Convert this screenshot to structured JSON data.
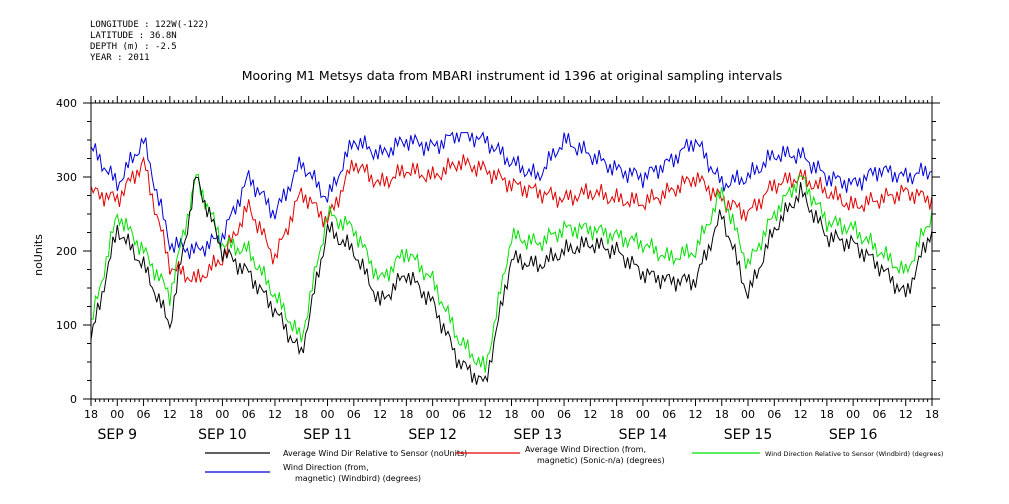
{
  "header": {
    "longitude": "LONGITUDE : 122W(-122)",
    "latitude": "LATITUDE : 36.8N",
    "depth": "DEPTH (m) : -2.5",
    "year": "YEAR : 2011"
  },
  "colors": {
    "black": "#000000",
    "red": "#e00000",
    "green": "#00e000",
    "blue": "#0000d8"
  },
  "chart_data": {
    "type": "line",
    "title": "Mooring M1 Metsys data from MBARI instrument id 1396 at original sampling intervals",
    "ylabel": "noUnits",
    "ylim": [
      0,
      400
    ],
    "yticks": [
      0,
      100,
      200,
      300,
      400
    ],
    "x_range_hours_label": "2011-09-08 18:00 to 2011-09-16 18:00",
    "x_tick_labels": [
      "18",
      "00",
      "06",
      "12",
      "18",
      "00",
      "06",
      "12",
      "18",
      "00",
      "06",
      "12",
      "18",
      "00",
      "06",
      "12",
      "18",
      "00",
      "06",
      "12",
      "18",
      "00",
      "06",
      "12",
      "18",
      "00",
      "06",
      "12",
      "18",
      "00",
      "06",
      "12",
      "18"
    ],
    "day_labels": [
      "SEP 9",
      "SEP 10",
      "SEP 11",
      "SEP 12",
      "SEP 13",
      "SEP 14",
      "SEP 15",
      "SEP 16"
    ],
    "grid": false,
    "legend_position": "bottom",
    "series": [
      {
        "name": "Average Wind Dir Relative to Sensor (noUnits)",
        "color": "#000000",
        "x": [
          "09-08 18:00",
          "09-09 00:00",
          "09-09 06:00",
          "09-09 12:00",
          "09-09 18:00",
          "09-10 00:00",
          "09-10 06:00",
          "09-10 12:00",
          "09-10 18:00",
          "09-11 00:00",
          "09-11 06:00",
          "09-11 12:00",
          "09-11 18:00",
          "09-12 00:00",
          "09-12 06:00",
          "09-12 12:00",
          "09-12 18:00",
          "09-13 00:00",
          "09-13 06:00",
          "09-13 12:00",
          "09-13 18:00",
          "09-14 00:00",
          "09-14 06:00",
          "09-14 12:00",
          "09-14 18:00",
          "09-15 00:00",
          "09-15 06:00",
          "09-15 12:00",
          "09-15 18:00",
          "09-16 00:00",
          "09-16 06:00",
          "09-16 12:00",
          "09-16 18:00"
        ],
        "values": [
          80,
          230,
          180,
          100,
          300,
          200,
          170,
          120,
          60,
          230,
          200,
          130,
          170,
          130,
          50,
          20,
          190,
          180,
          200,
          210,
          200,
          170,
          160,
          160,
          250,
          140,
          230,
          280,
          220,
          210,
          180,
          140,
          230
        ]
      },
      {
        "name": "Average Wind Direction (from, magnetic) (Sonic-n/a) (degrees)",
        "color": "#e00000",
        "x": [
          "09-08 18:00",
          "09-09 00:00",
          "09-09 06:00",
          "09-09 12:00",
          "09-09 18:00",
          "09-10 00:00",
          "09-10 06:00",
          "09-10 12:00",
          "09-10 18:00",
          "09-11 00:00",
          "09-11 06:00",
          "09-11 12:00",
          "09-11 18:00",
          "09-12 00:00",
          "09-12 06:00",
          "09-12 12:00",
          "09-12 18:00",
          "09-13 00:00",
          "09-13 06:00",
          "09-13 12:00",
          "09-13 18:00",
          "09-14 00:00",
          "09-14 06:00",
          "09-14 12:00",
          "09-14 18:00",
          "09-15 00:00",
          "09-15 06:00",
          "09-15 12:00",
          "09-15 18:00",
          "09-16 00:00",
          "09-16 06:00",
          "09-16 12:00",
          "09-16 18:00"
        ],
        "values": [
          280,
          270,
          320,
          180,
          160,
          190,
          260,
          190,
          280,
          240,
          320,
          290,
          310,
          300,
          320,
          310,
          290,
          280,
          270,
          280,
          270,
          265,
          280,
          300,
          270,
          250,
          290,
          300,
          280,
          260,
          270,
          280,
          270
        ]
      },
      {
        "name": "Wind Direction Relative to Sensor (Windbird) (degrees)",
        "color": "#00e000",
        "x": [
          "09-08 18:00",
          "09-09 00:00",
          "09-09 06:00",
          "09-09 12:00",
          "09-09 18:00",
          "09-10 00:00",
          "09-10 06:00",
          "09-10 12:00",
          "09-10 18:00",
          "09-11 00:00",
          "09-11 06:00",
          "09-11 12:00",
          "09-11 18:00",
          "09-12 00:00",
          "09-12 06:00",
          "09-12 12:00",
          "09-12 18:00",
          "09-13 00:00",
          "09-13 06:00",
          "09-13 12:00",
          "09-13 18:00",
          "09-14 00:00",
          "09-14 06:00",
          "09-14 12:00",
          "09-14 18:00",
          "09-15 00:00",
          "09-15 06:00",
          "09-15 12:00",
          "09-15 18:00",
          "09-16 00:00",
          "09-16 06:00",
          "09-16 12:00",
          "09-16 18:00"
        ],
        "values": [
          100,
          250,
          200,
          140,
          300,
          210,
          200,
          140,
          80,
          250,
          230,
          160,
          200,
          160,
          80,
          40,
          220,
          210,
          230,
          230,
          220,
          210,
          190,
          200,
          280,
          180,
          250,
          300,
          240,
          230,
          200,
          170,
          250
        ]
      },
      {
        "name": "Wind Direction (from, magnetic) (Windbird) (degrees)",
        "color": "#0000d8",
        "x": [
          "09-08 18:00",
          "09-09 00:00",
          "09-09 06:00",
          "09-09 12:00",
          "09-09 18:00",
          "09-10 00:00",
          "09-10 06:00",
          "09-10 12:00",
          "09-10 18:00",
          "09-11 00:00",
          "09-11 06:00",
          "09-11 12:00",
          "09-11 18:00",
          "09-12 00:00",
          "09-12 06:00",
          "09-12 12:00",
          "09-12 18:00",
          "09-13 00:00",
          "09-13 06:00",
          "09-13 12:00",
          "09-13 18:00",
          "09-14 00:00",
          "09-14 06:00",
          "09-14 12:00",
          "09-14 18:00",
          "09-15 00:00",
          "09-15 06:00",
          "09-15 12:00",
          "09-15 18:00",
          "09-16 00:00",
          "09-16 06:00",
          "09-16 12:00",
          "09-16 18:00"
        ],
        "values": [
          340,
          290,
          350,
          210,
          200,
          220,
          300,
          250,
          320,
          270,
          350,
          330,
          350,
          340,
          360,
          350,
          320,
          300,
          350,
          330,
          310,
          300,
          320,
          350,
          290,
          300,
          330,
          330,
          300,
          290,
          310,
          300,
          310
        ]
      }
    ],
    "legend": [
      {
        "label_line1": "Average Wind Dir Relative to Sensor (noUnits)",
        "label_line2": "",
        "color": "#000000"
      },
      {
        "label_line1": "Average Wind Direction (from,",
        "label_line2": "magnetic) (Sonic-n/a) (degrees)",
        "color": "#e00000"
      },
      {
        "label_line1": "Wind Direction Relative to Sensor (Windbird) (degrees)",
        "label_line2": "",
        "color": "#00e000"
      },
      {
        "label_line1": "Wind Direction (from,",
        "label_line2": "magnetic) (Windbird) (degrees)",
        "color": "#0000d8"
      }
    ]
  }
}
